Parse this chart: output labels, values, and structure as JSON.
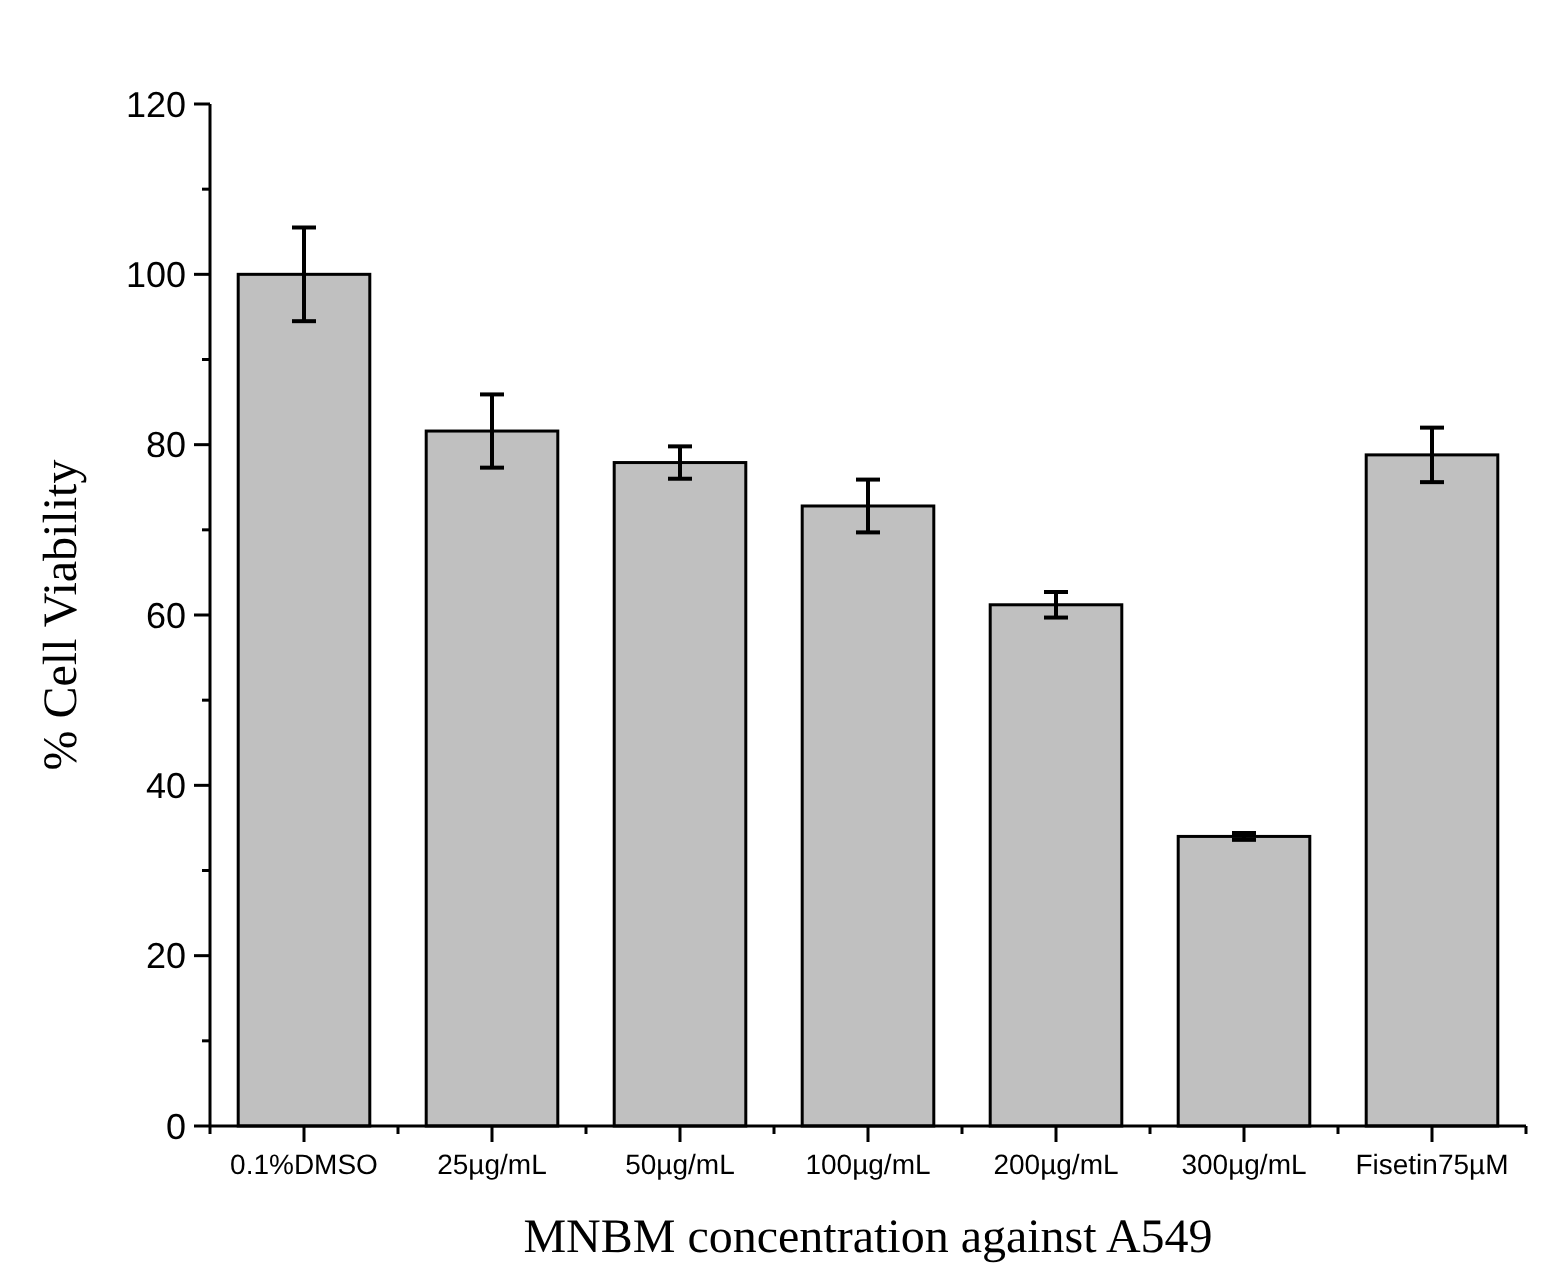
{
  "chart_data": {
    "type": "bar",
    "xlabel": "MNBM concentration against A549",
    "ylabel": "% Cell Viability",
    "categories": [
      "0.1%DMSO",
      "25µg/mL",
      "50µg/mL",
      "100µg/mL",
      "200µg/mL",
      "300µg/mL",
      "Fisetin75µM"
    ],
    "values": [
      100,
      81.6,
      77.9,
      72.8,
      61.2,
      34,
      78.8
    ],
    "errors": [
      5.5,
      4.3,
      1.9,
      3.1,
      1.5,
      0.4,
      3.2
    ],
    "color": "#c0c0c0",
    "ylim": [
      0,
      120
    ],
    "yticks": [
      0,
      20,
      40,
      60,
      80,
      100,
      120
    ],
    "grid": false
  }
}
